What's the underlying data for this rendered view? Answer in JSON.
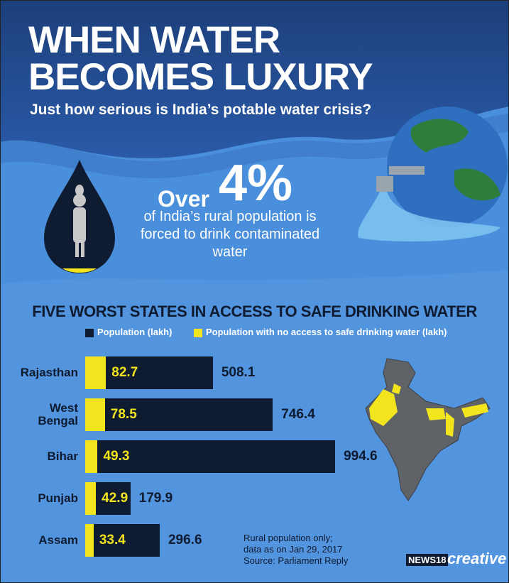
{
  "header": {
    "title_lines": [
      "WHEN WATER",
      "BECOMES LUXURY"
    ],
    "subtitle": "Just how serious is India’s potable water crisis?"
  },
  "callout": {
    "prefix": "Over",
    "figure": "4%",
    "text": "of India’s rural population is forced to drink contaminated water"
  },
  "chart_data": {
    "type": "bar",
    "title": "FIVE WORST STATES IN ACCESS TO SAFE DRINKING WATER",
    "categories": [
      "Rajasthan",
      "West Bengal",
      "Bihar",
      "Punjab",
      "Assam"
    ],
    "series": [
      {
        "name": "Population (lakh)",
        "color": "#0f1b30",
        "values": [
          508.1,
          746.4,
          994.6,
          179.9,
          296.6
        ]
      },
      {
        "name": "Population with no access to safe drinking water (lakh)",
        "color": "#f2e41d",
        "values": [
          82.7,
          78.5,
          49.3,
          42.9,
          33.4
        ]
      }
    ]
  },
  "notes": [
    "Rural population only;",
    "data as on Jan 29, 2017",
    "Source: Parliament Reply"
  ],
  "brand": {
    "name": "NEWS18",
    "tag": "creative"
  }
}
